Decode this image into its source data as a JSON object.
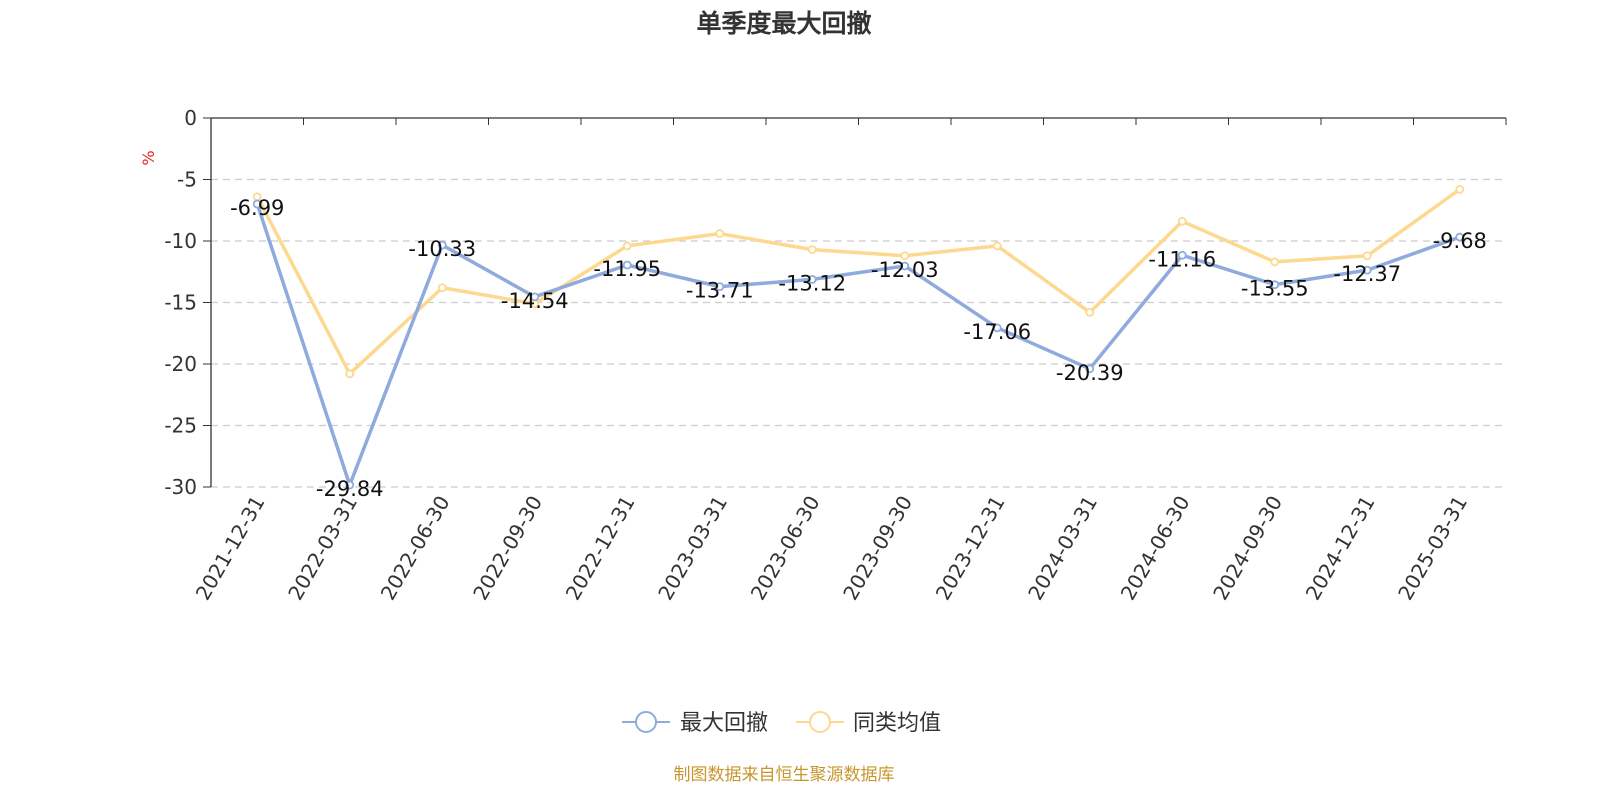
{
  "chart_data": {
    "type": "line",
    "title": "单季度最大回撤",
    "ylabel": "%",
    "xlabel": "",
    "ylim": [
      -30,
      0
    ],
    "yticks": [
      0,
      -5,
      -10,
      -15,
      -20,
      -25,
      -30
    ],
    "grid": true,
    "legend_position": "bottom-center",
    "categories": [
      "2021-12-31",
      "2022-03-31",
      "2022-06-30",
      "2022-09-30",
      "2022-12-31",
      "2023-03-31",
      "2023-06-30",
      "2023-09-30",
      "2023-12-31",
      "2024-03-31",
      "2024-06-30",
      "2024-09-30",
      "2024-12-31",
      "2025-03-31"
    ],
    "series": [
      {
        "name": "最大回撤",
        "color": "#8faadc",
        "values": [
          -6.99,
          -29.84,
          -10.33,
          -14.54,
          -11.95,
          -13.71,
          -13.12,
          -12.03,
          -17.06,
          -20.39,
          -11.16,
          -13.55,
          -12.37,
          -9.68
        ],
        "labels": [
          "-6.99",
          "-29.84",
          "-10.33",
          "-14.54",
          "-11.95",
          "-13.71",
          "-13.12",
          "-12.03",
          "-17.06",
          "-20.39",
          "-11.16",
          "-13.55",
          "-12.37",
          "-9.68"
        ]
      },
      {
        "name": "同类均值",
        "color": "#fcd98f",
        "values": [
          -6.4,
          -20.8,
          -13.8,
          -15.1,
          -10.4,
          -9.4,
          -10.7,
          -11.2,
          -10.4,
          -15.8,
          -8.4,
          -11.7,
          -11.2,
          -5.8
        ]
      }
    ],
    "source": "制图数据来自恒生聚源数据库"
  },
  "colors": {
    "axis": "#333333",
    "grid": "#cccccc",
    "source_text": "#c8962e",
    "unit_label": "#e8231f"
  }
}
